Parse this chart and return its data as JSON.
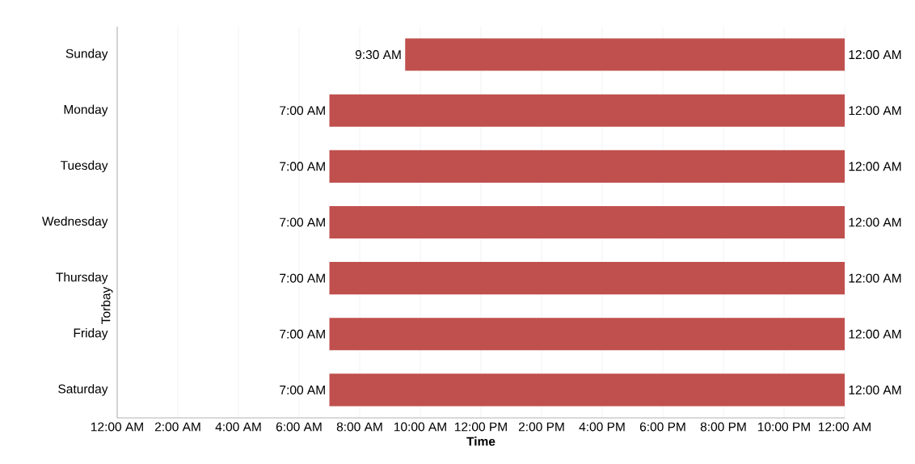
{
  "chart_data": {
    "type": "bar",
    "orientation": "horizontal",
    "xlabel": "Time",
    "ylabel": "Torbay",
    "categories": [
      "Sunday",
      "Monday",
      "Tuesday",
      "Wednesday",
      "Thursday",
      "Friday",
      "Saturday"
    ],
    "base": [
      9.5,
      7,
      7,
      7,
      7,
      7,
      7
    ],
    "values": [
      14.5,
      17,
      17,
      17,
      17,
      17,
      17
    ],
    "color": "#c0504d",
    "xlim": [
      0,
      24
    ],
    "xticks": [
      {
        "value": 0,
        "label": "12:00 AM"
      },
      {
        "value": 2,
        "label": "2:00 AM"
      },
      {
        "value": 4,
        "label": "4:00 AM"
      },
      {
        "value": 6,
        "label": "6:00 AM"
      },
      {
        "value": 8,
        "label": "8:00 AM"
      },
      {
        "value": 10,
        "label": "10:00 AM"
      },
      {
        "value": 12,
        "label": "12:00 PM"
      },
      {
        "value": 14,
        "label": "2:00 PM"
      },
      {
        "value": 16,
        "label": "4:00 PM"
      },
      {
        "value": 18,
        "label": "6:00 PM"
      },
      {
        "value": 20,
        "label": "8:00 PM"
      },
      {
        "value": 22,
        "label": "10:00 PM"
      },
      {
        "value": 24,
        "label": "12:00 AM"
      }
    ],
    "grid": "x",
    "annotations": [
      {
        "text": "9:30 AM",
        "x": 9.5,
        "y": "Sunday"
      },
      {
        "text": "12:00 AM",
        "x": 24,
        "y": "Sunday"
      },
      {
        "text": "7:00 AM",
        "x": 7,
        "y": "Monday"
      },
      {
        "text": "12:00 AM",
        "x": 24,
        "y": "Monday"
      },
      {
        "text": "7:00 AM",
        "x": 7,
        "y": "Tuesday"
      },
      {
        "text": "12:00 AM",
        "x": 24,
        "y": "Tuesday"
      },
      {
        "text": "7:00 AM",
        "x": 7,
        "y": "Wednesday"
      },
      {
        "text": "12:00 AM",
        "x": 24,
        "y": "Wednesday"
      },
      {
        "text": "7:00 AM",
        "x": 7,
        "y": "Thursday"
      },
      {
        "text": "12:00 AM",
        "x": 24,
        "y": "Thursday"
      },
      {
        "text": "7:00 AM",
        "x": 7,
        "y": "Friday"
      },
      {
        "text": "12:00 AM",
        "x": 24,
        "y": "Friday"
      },
      {
        "text": "7:00 AM",
        "x": 7,
        "y": "Saturday"
      },
      {
        "text": "12:00 AM",
        "x": 24,
        "y": "Saturday"
      }
    ]
  }
}
